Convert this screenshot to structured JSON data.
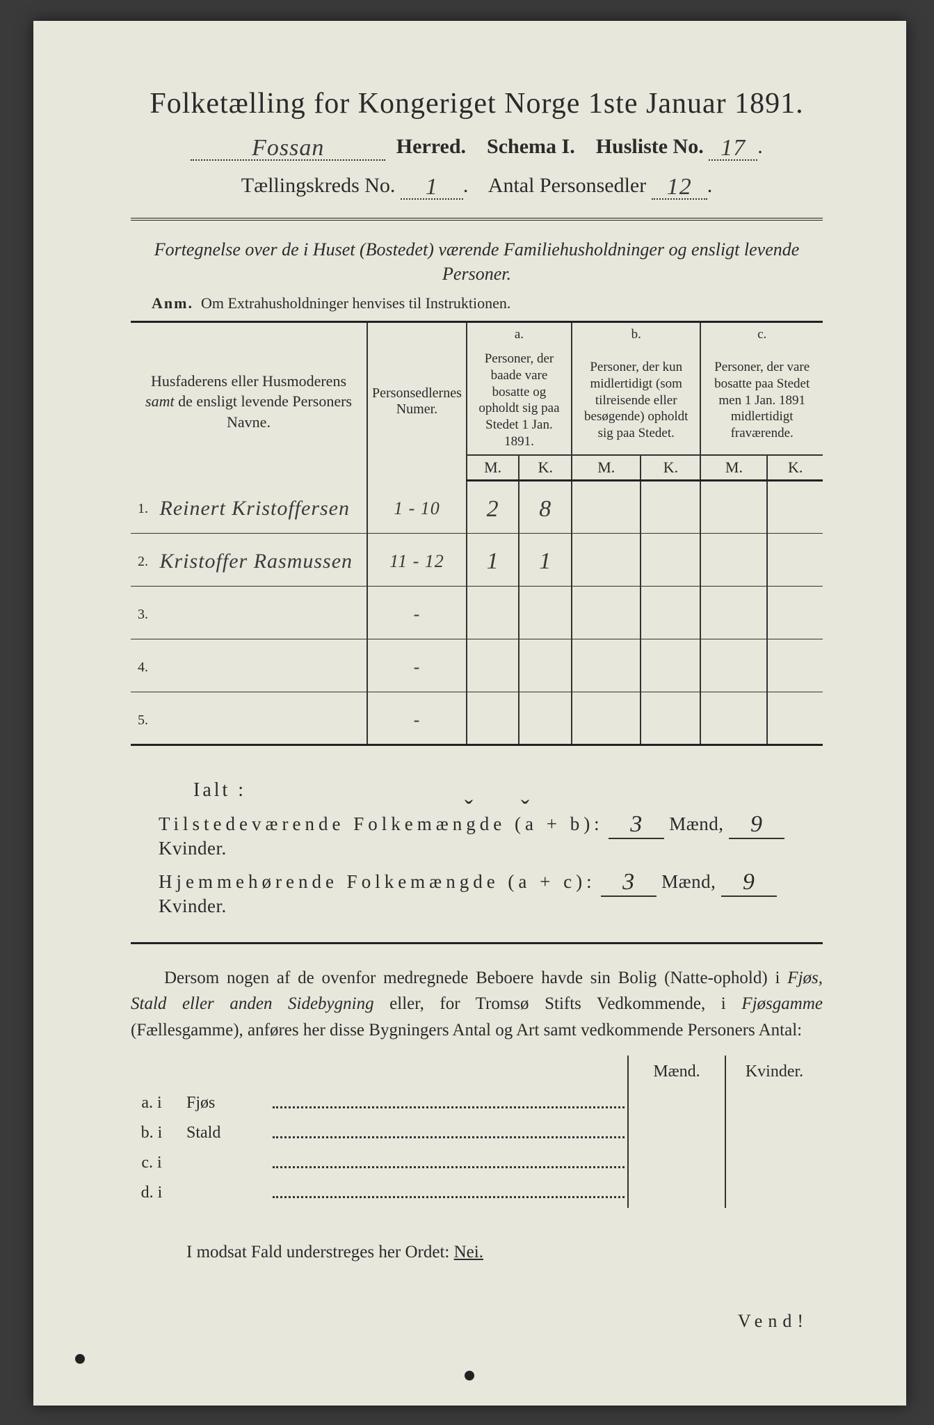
{
  "title": "Folketælling for Kongeriget Norge 1ste Januar 1891.",
  "header": {
    "herred_value": "Fossan",
    "herred_label": "Herred.",
    "schema_label": "Schema I.",
    "husliste_label": "Husliste No.",
    "husliste_value": "17",
    "kreds_label": "Tællingskreds No.",
    "kreds_value": "1",
    "antal_label": "Antal Personsedler",
    "antal_value": "12"
  },
  "desc": "Fortegnelse over de i Huset (Bostedet) værende Familiehusholdninger og ensligt levende Personer.",
  "anm_label": "Anm.",
  "anm_text": "Om Extrahusholdninger henvises til Instruktionen.",
  "cols": {
    "names": "Husfaderens eller Husmoderens samt de ensligt levende Personers Navne.",
    "num": "Personsedlernes Numer.",
    "a_letter": "a.",
    "a": "Personer, der baade vare bosatte og opholdt sig paa Stedet 1 Jan. 1891.",
    "b_letter": "b.",
    "b": "Personer, der kun midlertidigt (som tilreisende eller besøgende) opholdt sig paa Stedet.",
    "c_letter": "c.",
    "c": "Personer, der vare bosatte paa Stedet men 1 Jan. 1891 midlertidigt fraværende.",
    "m": "M.",
    "k": "K."
  },
  "rows": [
    {
      "n": "1.",
      "name": "Reinert Kristoffersen",
      "num": "1 - 10",
      "am": "2",
      "ak": "8",
      "bm": "",
      "bk": "",
      "cm": "",
      "ck": ""
    },
    {
      "n": "2.",
      "name": "Kristoffer Rasmussen",
      "num": "11 - 12",
      "am": "1",
      "ak": "1",
      "bm": "",
      "bk": "",
      "cm": "",
      "ck": ""
    },
    {
      "n": "3.",
      "name": "",
      "num": "-",
      "am": "",
      "ak": "",
      "bm": "",
      "bk": "",
      "cm": "",
      "ck": ""
    },
    {
      "n": "4.",
      "name": "",
      "num": "-",
      "am": "",
      "ak": "",
      "bm": "",
      "bk": "",
      "cm": "",
      "ck": ""
    },
    {
      "n": "5.",
      "name": "",
      "num": "-",
      "am": "",
      "ak": "",
      "bm": "",
      "bk": "",
      "cm": "",
      "ck": ""
    }
  ],
  "totals": {
    "ialt": "Ialt :",
    "line1_a": "Tilstedeværende Folkemængde (a + b):",
    "line2_a": "Hjemmehørende Folkemængde (a + c):",
    "maend": "Mænd,",
    "kvinder": "Kvinder.",
    "v1m": "3",
    "v1k": "9",
    "v2m": "3",
    "v2k": "9"
  },
  "para": {
    "p1a": "Dersom nogen af de ovenfor medregnede Beboere havde sin Bolig (Natte-ophold) i ",
    "p1b": "Fjøs, Stald eller anden Sidebygning",
    "p1c": " eller, for Tromsø Stifts Vedkommende, i ",
    "p1d": "Fjøsgamme",
    "p1e": " (Fællesgamme), anføres her disse Bygningers Antal og Art samt vedkommende Personers Antal:"
  },
  "sub": {
    "maend": "Mænd.",
    "kvinder": "Kvinder.",
    "rows": [
      {
        "l": "a.  i",
        "cat": "Fjøs"
      },
      {
        "l": "b.  i",
        "cat": "Stald"
      },
      {
        "l": "c.  i",
        "cat": ""
      },
      {
        "l": "d.  i",
        "cat": ""
      }
    ]
  },
  "nei": {
    "pre": "I modsat Fald understreges her Ordet: ",
    "word": "Nei."
  },
  "vend": "Vend!",
  "colors": {
    "paper": "#e8e7dc",
    "ink": "#2a2a2a",
    "background": "#3a3a3a"
  }
}
